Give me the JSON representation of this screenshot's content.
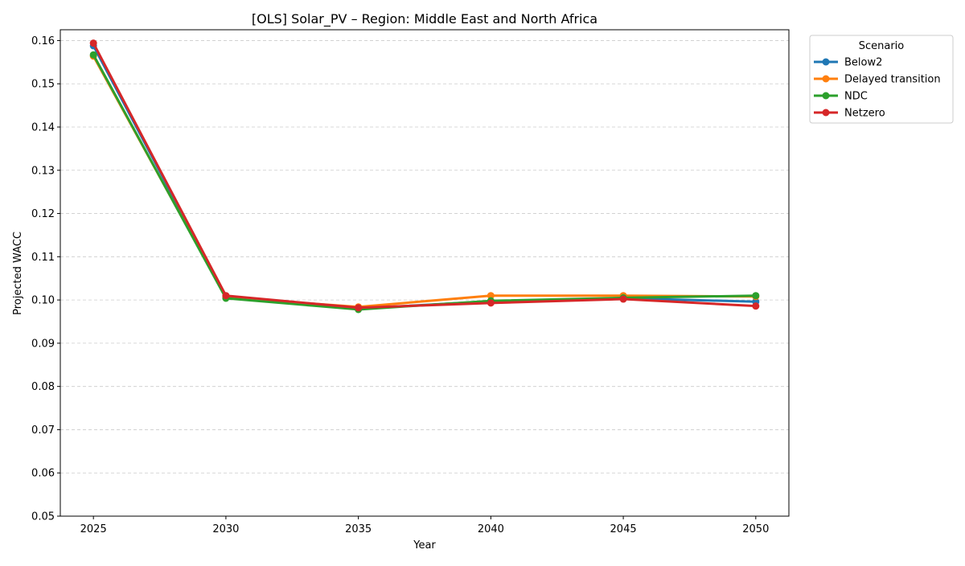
{
  "chart_data": {
    "type": "line",
    "title": "[OLS] Solar_PV – Region: Middle East and North Africa",
    "xlabel": "Year",
    "ylabel": "Projected WACC",
    "x": [
      2025,
      2030,
      2035,
      2040,
      2045,
      2050
    ],
    "xlim": [
      2023.75,
      2051.25
    ],
    "ylim": [
      0.05,
      0.1625
    ],
    "xticks": [
      "2025",
      "2030",
      "2035",
      "2040",
      "2045",
      "2050"
    ],
    "yticks": [
      0.05,
      0.06,
      0.07,
      0.08,
      0.09,
      0.1,
      0.11,
      0.12,
      0.13,
      0.14,
      0.15,
      0.16
    ],
    "ytick_labels": [
      "0.05",
      "0.06",
      "0.07",
      "0.08",
      "0.09",
      "0.10",
      "0.11",
      "0.12",
      "0.13",
      "0.14",
      "0.15",
      "0.16"
    ],
    "grid": "y-dashed",
    "legend": {
      "title": "Scenario",
      "placement": "outside-top-right"
    },
    "series": [
      {
        "name": "Below2",
        "color": "#1f77b4",
        "values": [
          0.1588,
          0.1008,
          0.098,
          0.0997,
          0.1004,
          0.0996
        ]
      },
      {
        "name": "Delayed transition",
        "color": "#ff7f0e",
        "values": [
          0.1564,
          0.1006,
          0.0984,
          0.101,
          0.101,
          0.1008
        ]
      },
      {
        "name": "NDC",
        "color": "#2ca02c",
        "values": [
          0.1567,
          0.1004,
          0.0978,
          0.0998,
          0.1005,
          0.101
        ]
      },
      {
        "name": "Netzero",
        "color": "#d62728",
        "values": [
          0.1594,
          0.101,
          0.0982,
          0.0993,
          0.1002,
          0.0986
        ]
      }
    ]
  }
}
